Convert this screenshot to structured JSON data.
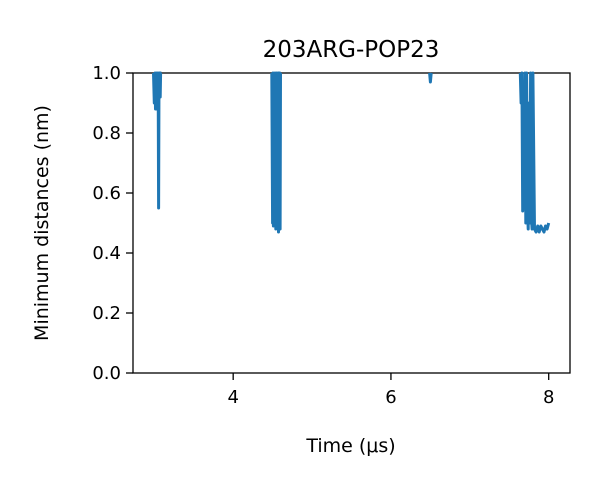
{
  "chart_data": {
    "type": "line",
    "title": "203ARG-POP23",
    "xlabel": "Time (μs)",
    "ylabel": "Minimum distances (nm)",
    "xlim": [
      2.73,
      8.27
    ],
    "ylim": [
      0,
      1.0
    ],
    "x_ticks": [
      4,
      6,
      8
    ],
    "y_ticks": [
      0.0,
      0.2,
      0.4,
      0.6,
      0.8,
      1.0
    ],
    "grid": false,
    "series_color": "#1f77b4",
    "series": [
      {
        "x": [
          2.99,
          3.0,
          3.01,
          3.015,
          3.02,
          3.025,
          3.03,
          3.04,
          3.045,
          3.05,
          3.055,
          3.06,
          3.065,
          3.07,
          3.075,
          3.08,
          3.09
        ],
        "y": [
          1.0,
          0.9,
          1.0,
          0.88,
          0.96,
          0.88,
          1.0,
          0.92,
          1.0,
          0.97,
          0.55,
          1.0,
          0.95,
          1.0,
          0.92,
          1.0,
          1.0
        ]
      },
      {
        "x": [
          4.49,
          4.5,
          4.505,
          4.51,
          4.52,
          4.53,
          4.54,
          4.55,
          4.56,
          4.565,
          4.57,
          4.575,
          4.58,
          4.585,
          4.59,
          4.595,
          4.6
        ],
        "y": [
          1.0,
          0.5,
          1.0,
          0.49,
          0.9,
          1.0,
          0.48,
          1.0,
          0.49,
          0.96,
          1.0,
          0.47,
          1.0,
          0.5,
          1.0,
          0.48,
          1.0
        ]
      },
      {
        "x": [
          6.49,
          6.5,
          6.51
        ],
        "y": [
          1.0,
          0.97,
          1.0
        ]
      },
      {
        "x": [
          7.64,
          7.65,
          7.66,
          7.67,
          7.68,
          7.69,
          7.7,
          7.71,
          7.72,
          7.73,
          7.74,
          7.75,
          7.76,
          7.77,
          7.78,
          7.79,
          7.8,
          7.82,
          7.84,
          7.86,
          7.88,
          7.9,
          7.92,
          7.94,
          7.96,
          7.98,
          8.0
        ],
        "y": [
          1.0,
          0.9,
          1.0,
          0.54,
          0.95,
          0.6,
          1.0,
          0.5,
          1.0,
          0.56,
          0.48,
          0.9,
          0.5,
          1.0,
          0.52,
          0.48,
          1.0,
          0.48,
          0.47,
          0.49,
          0.47,
          0.49,
          0.48,
          0.47,
          0.49,
          0.48,
          0.5
        ]
      }
    ]
  }
}
